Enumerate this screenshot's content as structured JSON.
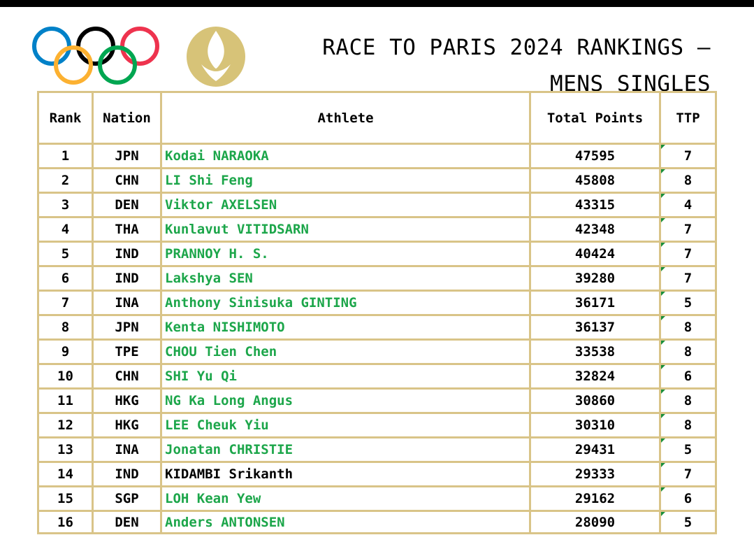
{
  "title": {
    "line1": "RACE TO PARIS 2024 RANKINGS –",
    "line2": "MENS SINGLES"
  },
  "logos": {
    "rings": "olympic-rings-icon",
    "emblem": "paris-2024-flame-icon",
    "ring_colors": [
      "#0081c8",
      "#000000",
      "#ee334e",
      "#fcb131",
      "#00a651"
    ],
    "emblem_color": "#d7c378"
  },
  "colors": {
    "border": "#d9c488",
    "athlete_link": "#1ca64a"
  },
  "table": {
    "headers": {
      "rank": "Rank",
      "nation": "Nation",
      "athlete": "Athlete",
      "points": "Total Points",
      "ttp": "TTP"
    },
    "rows": [
      {
        "rank": "1",
        "nation": "JPN",
        "athlete": "Kodai NARAOKA",
        "points": "47595",
        "ttp": "7",
        "link": true
      },
      {
        "rank": "2",
        "nation": "CHN",
        "athlete": "LI Shi Feng",
        "points": "45808",
        "ttp": "8",
        "link": true
      },
      {
        "rank": "3",
        "nation": "DEN",
        "athlete": "Viktor AXELSEN",
        "points": "43315",
        "ttp": "4",
        "link": true
      },
      {
        "rank": "4",
        "nation": "THA",
        "athlete": "Kunlavut VITIDSARN",
        "points": "42348",
        "ttp": "7",
        "link": true
      },
      {
        "rank": "5",
        "nation": "IND",
        "athlete": "PRANNOY H. S.",
        "points": "40424",
        "ttp": "7",
        "link": true
      },
      {
        "rank": "6",
        "nation": "IND",
        "athlete": "Lakshya SEN",
        "points": "39280",
        "ttp": "7",
        "link": true
      },
      {
        "rank": "7",
        "nation": "INA",
        "athlete": "Anthony Sinisuka GINTING",
        "points": "36171",
        "ttp": "5",
        "link": true
      },
      {
        "rank": "8",
        "nation": "JPN",
        "athlete": "Kenta NISHIMOTO",
        "points": "36137",
        "ttp": "8",
        "link": true
      },
      {
        "rank": "9",
        "nation": "TPE",
        "athlete": "CHOU Tien Chen",
        "points": "33538",
        "ttp": "8",
        "link": true
      },
      {
        "rank": "10",
        "nation": "CHN",
        "athlete": "SHI Yu Qi",
        "points": "32824",
        "ttp": "6",
        "link": true
      },
      {
        "rank": "11",
        "nation": "HKG",
        "athlete": "NG Ka Long Angus",
        "points": "30860",
        "ttp": "8",
        "link": true
      },
      {
        "rank": "12",
        "nation": "HKG",
        "athlete": "LEE Cheuk Yiu",
        "points": "30310",
        "ttp": "8",
        "link": true
      },
      {
        "rank": "13",
        "nation": "INA",
        "athlete": "Jonatan CHRISTIE",
        "points": "29431",
        "ttp": "5",
        "link": true
      },
      {
        "rank": "14",
        "nation": "IND",
        "athlete": "KIDAMBI Srikanth",
        "points": "29333",
        "ttp": "7",
        "link": false
      },
      {
        "rank": "15",
        "nation": "SGP",
        "athlete": "LOH Kean Yew",
        "points": "29162",
        "ttp": "6",
        "link": true
      },
      {
        "rank": "16",
        "nation": "DEN",
        "athlete": "Anders ANTONSEN",
        "points": "28090",
        "ttp": "5",
        "link": true
      }
    ]
  }
}
